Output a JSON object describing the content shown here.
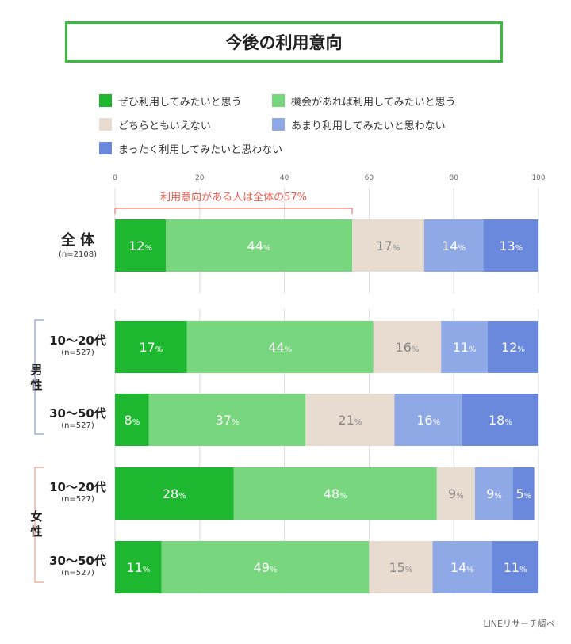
{
  "title": "今後の利用意向",
  "legend": [
    {
      "label": "ぜひ利用してみたいと思う",
      "color": "#1db730"
    },
    {
      "label": "機会があれば利用してみたいと思う",
      "color": "#77d67e"
    },
    {
      "label": "どちらともいえない",
      "color": "#e8dcd1"
    },
    {
      "label": "あまり利用してみたいと思わない",
      "color": "#8fa8e6"
    },
    {
      "label": "まったく利用してみたいと思わない",
      "color": "#6a89dd"
    }
  ],
  "annotation": "利用意向がある人は全体の57%",
  "groups": {
    "male": "男性",
    "female": "女性"
  },
  "source": "LINEリサーチ調べ",
  "chart_data": {
    "type": "bar",
    "orientation": "horizontal",
    "stacked": true,
    "xlim": [
      0,
      100
    ],
    "x_ticks": [
      "0",
      "20",
      "40",
      "60",
      "80",
      "100"
    ],
    "value_suffix": "%",
    "grid": true,
    "categories": [
      {
        "label": "全 体",
        "n": "(n=2108)"
      },
      {
        "label": "10〜20代",
        "n": "(n=527)"
      },
      {
        "label": "30〜50代",
        "n": "(n=527)"
      },
      {
        "label": "10〜20代",
        "n": "(n=527)"
      },
      {
        "label": "30〜50代",
        "n": "(n=527)"
      }
    ],
    "series": [
      {
        "name": "ぜひ利用してみたいと思う",
        "values": [
          12,
          17,
          8,
          28,
          11
        ]
      },
      {
        "name": "機会があれば利用してみたいと思う",
        "values": [
          44,
          44,
          37,
          48,
          49
        ]
      },
      {
        "name": "どちらともいえない",
        "values": [
          17,
          16,
          21,
          9,
          15
        ]
      },
      {
        "name": "あまり利用してみたいと思わない",
        "values": [
          14,
          11,
          16,
          9,
          14
        ]
      },
      {
        "name": "まったく利用してみたいと思わない",
        "values": [
          13,
          12,
          18,
          5,
          11
        ]
      }
    ]
  }
}
